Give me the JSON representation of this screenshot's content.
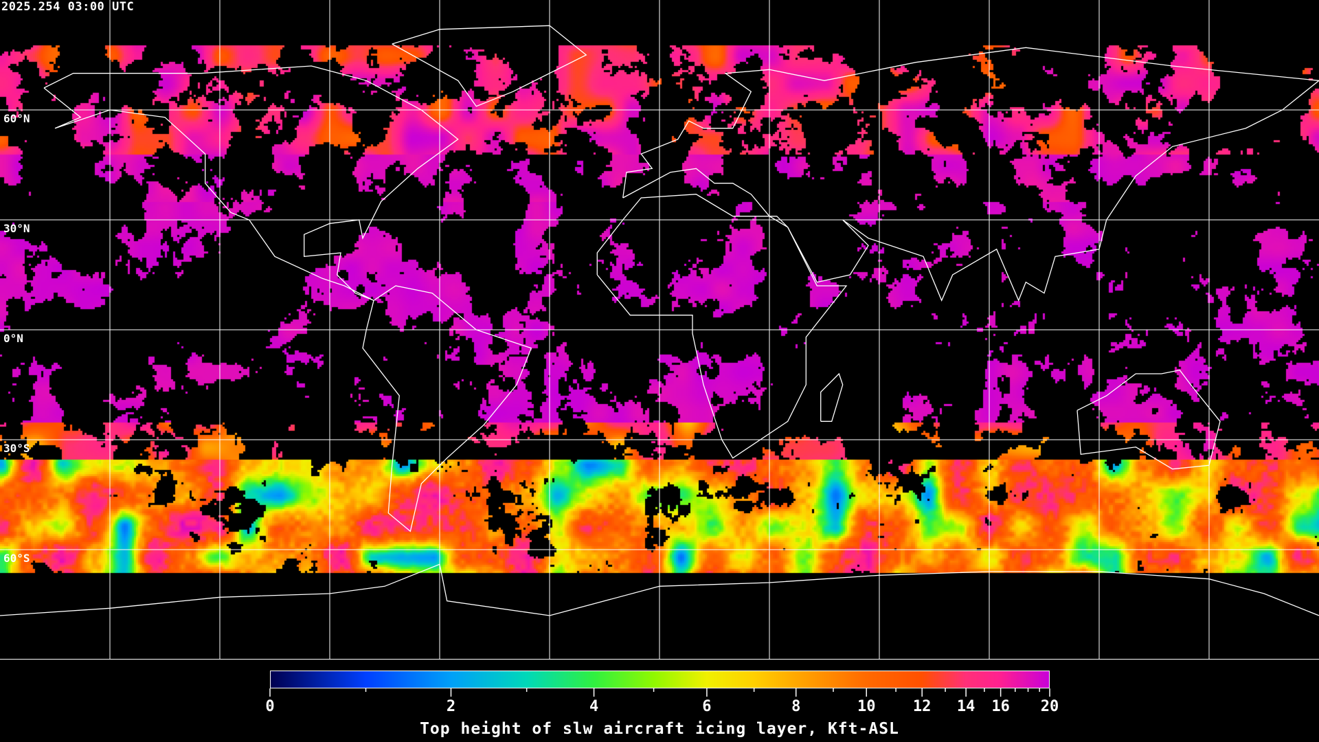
{
  "timestamp": "2025.254 03:00 UTC",
  "map": {
    "projection": "equirectangular",
    "graticule_step_deg": 30,
    "lat_labels": [
      "60°N",
      "30°N",
      "0°N",
      "30°S",
      "60°S"
    ],
    "background": "#000000",
    "coastline_color": "#ffffff",
    "grid_color": "#ffffff"
  },
  "colorbar": {
    "title": "Top height of slw aircraft icing layer, Kft-ASL",
    "range": [
      0,
      20
    ],
    "tick_labels": [
      "0",
      "2",
      "4",
      "6",
      "8",
      "10",
      "12",
      "14",
      "16",
      "20"
    ],
    "minor_ticks": [
      1,
      3,
      5,
      7,
      9,
      11,
      13,
      15,
      17,
      18,
      19
    ],
    "color_stops": [
      [
        0,
        "#000050"
      ],
      [
        1,
        "#0040ff"
      ],
      [
        2,
        "#00a0f8"
      ],
      [
        3,
        "#00d8b8"
      ],
      [
        4,
        "#30f040"
      ],
      [
        5,
        "#90f800"
      ],
      [
        6,
        "#f0f000"
      ],
      [
        7,
        "#ffd000"
      ],
      [
        8,
        "#ffa800"
      ],
      [
        10,
        "#ff6a00"
      ],
      [
        12,
        "#ff5000"
      ],
      [
        14,
        "#ff3078"
      ],
      [
        16,
        "#ff2090"
      ],
      [
        20,
        "#c800d8"
      ]
    ]
  }
}
